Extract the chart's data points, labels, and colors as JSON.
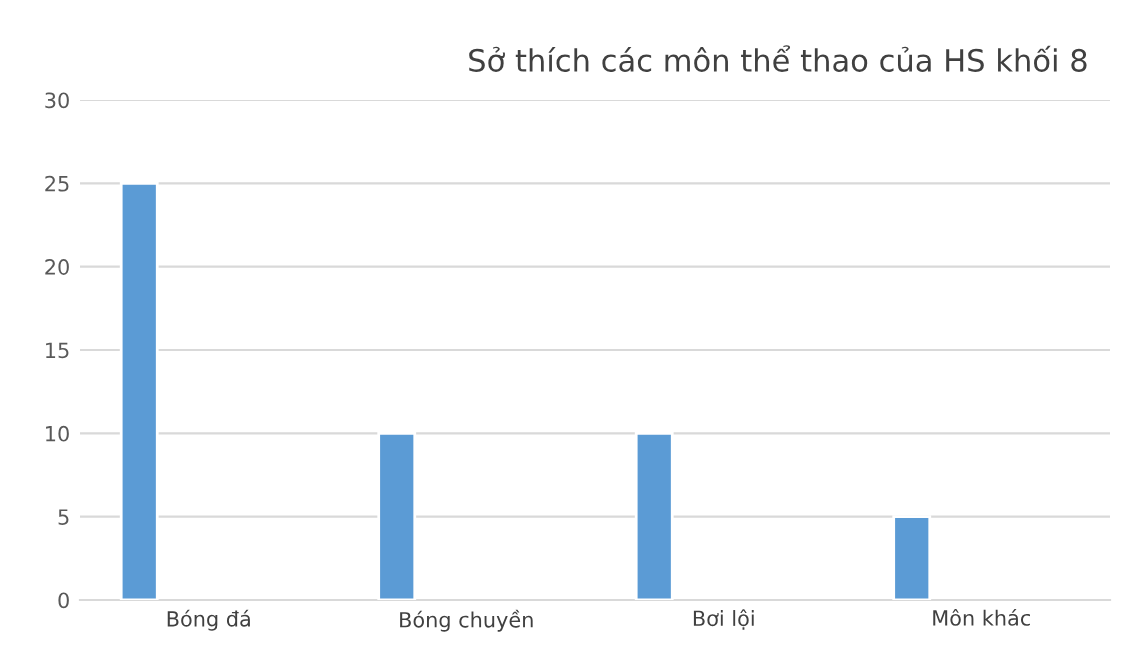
{
  "chart_data": {
    "type": "bar",
    "title": "Sở thích các môn thể thao của HS khối 8",
    "categories": [
      "Bóng đá",
      "Bóng chuyền",
      "Bơi lội",
      "Môn khác"
    ],
    "values": [
      25,
      10,
      10,
      5
    ],
    "color": "#5b9bd5",
    "ylim": [
      0,
      30
    ],
    "yticks": [
      0,
      5,
      10,
      15,
      20,
      25,
      30
    ],
    "grid": "y"
  }
}
